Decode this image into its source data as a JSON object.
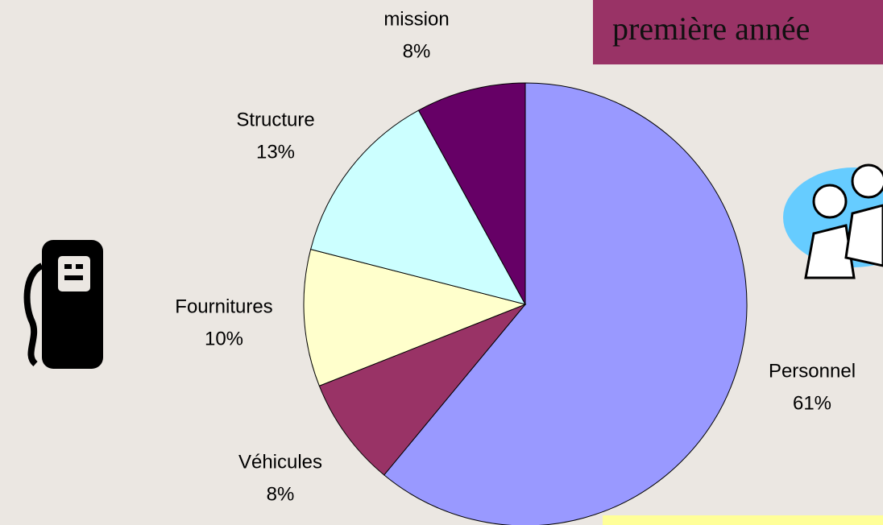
{
  "chart_data": {
    "type": "pie",
    "title": "première année",
    "categories": [
      "Personnel",
      "Véhicules",
      "Fournitures",
      "Structure",
      "mission"
    ],
    "values": [
      61,
      8,
      10,
      13,
      8
    ],
    "value_labels": [
      "61%",
      "8%",
      "10%",
      "13%",
      "8%"
    ],
    "colors": [
      "#9999ff",
      "#993366",
      "#ffffcc",
      "#ccffff",
      "#660066"
    ]
  }
}
